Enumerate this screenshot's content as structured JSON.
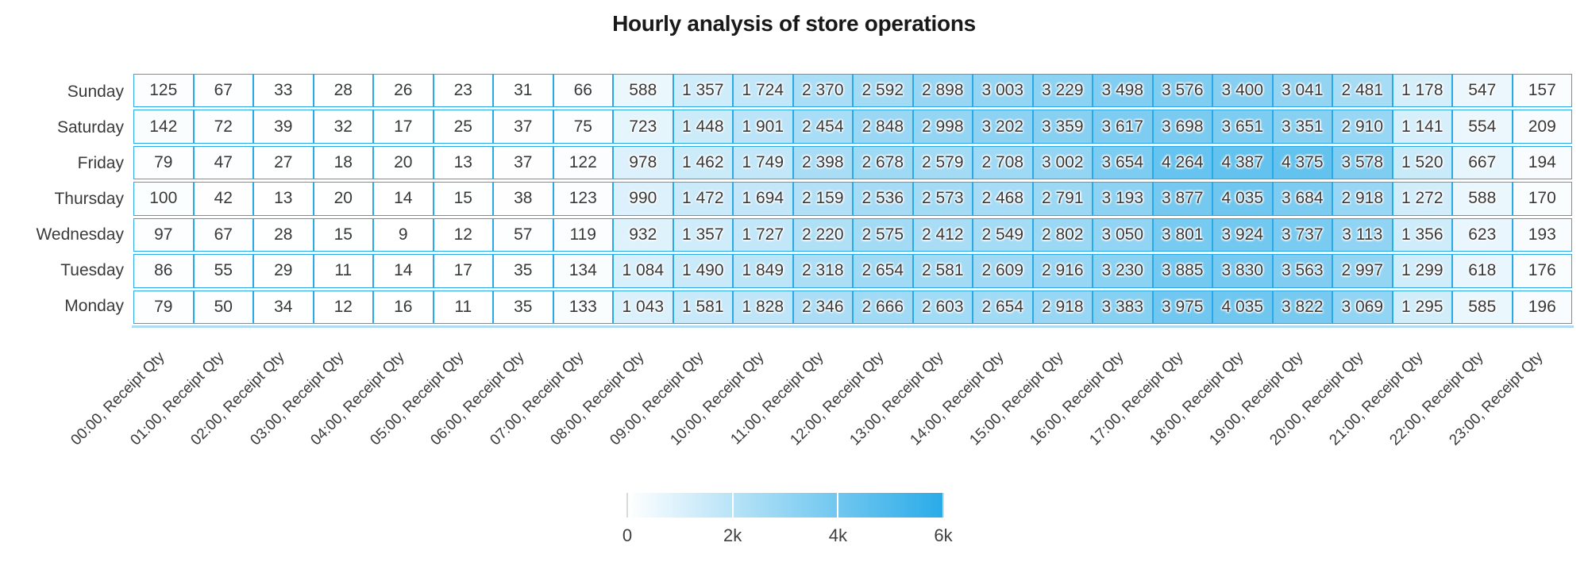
{
  "chart_data": {
    "type": "heatmap",
    "title": "Hourly analysis of store operations",
    "rows": [
      "Sunday",
      "Saturday",
      "Friday",
      "Thursday",
      "Wednesday",
      "Tuesday",
      "Monday"
    ],
    "columns": [
      "00:00, Receipt Qty",
      "01:00, Receipt Qty",
      "02:00, Receipt Qty",
      "03:00, Receipt Qty",
      "04:00, Receipt Qty",
      "05:00, Receipt Qty",
      "06:00, Receipt Qty",
      "07:00, Receipt Qty",
      "08:00, Receipt Qty",
      "09:00, Receipt Qty",
      "10:00, Receipt Qty",
      "11:00, Receipt Qty",
      "12:00, Receipt Qty",
      "13:00, Receipt Qty",
      "14:00, Receipt Qty",
      "15:00, Receipt Qty",
      "16:00, Receipt Qty",
      "17:00, Receipt Qty",
      "18:00, Receipt Qty",
      "19:00, Receipt Qty",
      "20:00, Receipt Qty",
      "21:00, Receipt Qty",
      "22:00, Receipt Qty",
      "23:00, Receipt Qty"
    ],
    "values": [
      [
        125,
        67,
        33,
        28,
        26,
        23,
        31,
        66,
        588,
        1357,
        1724,
        2370,
        2592,
        2898,
        3003,
        3229,
        3498,
        3576,
        3400,
        3041,
        2481,
        1178,
        547,
        157
      ],
      [
        142,
        72,
        39,
        32,
        17,
        25,
        37,
        75,
        723,
        1448,
        1901,
        2454,
        2848,
        2998,
        3202,
        3359,
        3617,
        3698,
        3651,
        3351,
        2910,
        1141,
        554,
        209
      ],
      [
        79,
        47,
        27,
        18,
        20,
        13,
        37,
        122,
        978,
        1462,
        1749,
        2398,
        2678,
        2579,
        2708,
        3002,
        3654,
        4264,
        4387,
        4375,
        3578,
        1520,
        667,
        194
      ],
      [
        100,
        42,
        13,
        20,
        14,
        15,
        38,
        123,
        990,
        1472,
        1694,
        2159,
        2536,
        2573,
        2468,
        2791,
        3193,
        3877,
        4035,
        3684,
        2918,
        1272,
        588,
        170
      ],
      [
        97,
        67,
        28,
        15,
        9,
        12,
        57,
        119,
        932,
        1357,
        1727,
        2220,
        2575,
        2412,
        2549,
        2802,
        3050,
        3801,
        3924,
        3737,
        3113,
        1356,
        623,
        193
      ],
      [
        86,
        55,
        29,
        11,
        14,
        17,
        35,
        134,
        1084,
        1490,
        1849,
        2318,
        2654,
        2581,
        2609,
        2916,
        3230,
        3885,
        3830,
        3563,
        2997,
        1299,
        618,
        176
      ],
      [
        79,
        50,
        34,
        12,
        16,
        11,
        35,
        133,
        1043,
        1581,
        1828,
        2346,
        2666,
        2603,
        2654,
        2918,
        3383,
        3975,
        4035,
        3822,
        3069,
        1295,
        585,
        196
      ]
    ],
    "value_format": "space-thousands",
    "colorscale": {
      "min": 0,
      "max": 6000,
      "min_color": "#ffffff",
      "max_color": "#29abe8"
    },
    "grid_border_color": "#29a9e8",
    "legend": {
      "tick_labels": [
        "0",
        "2k",
        "4k",
        "6k"
      ],
      "tick_values": [
        0,
        2000,
        4000,
        6000
      ],
      "position": "bottom-center"
    },
    "legend_on": true,
    "grid_on": true
  }
}
